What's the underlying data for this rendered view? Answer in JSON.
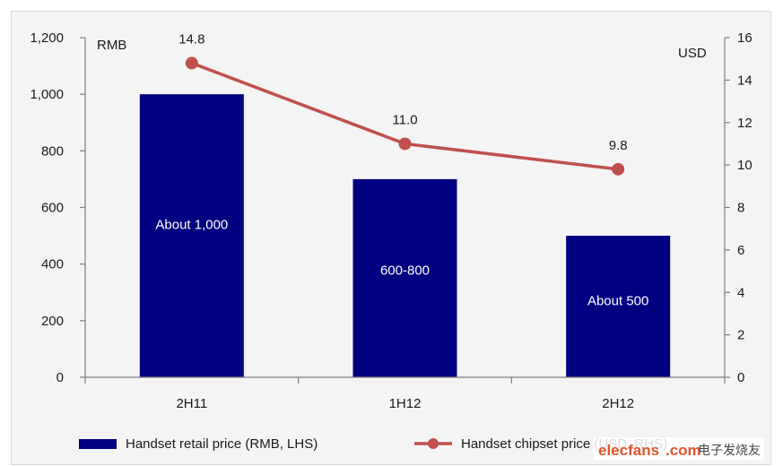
{
  "chart_data": {
    "type": "bar",
    "categories": [
      "2H11",
      "1H12",
      "2H12"
    ],
    "series": [
      {
        "name": "Handset retail price (RMB, LHS)",
        "kind": "bar",
        "axis": "left",
        "values": [
          1000,
          700,
          500
        ],
        "bar_labels": [
          "About 1,000",
          "600-800",
          "About 500"
        ],
        "color": "#000080"
      },
      {
        "name": "Handset chipset price (USD, RHS)",
        "kind": "line",
        "axis": "right",
        "values": [
          14.8,
          11.0,
          9.8
        ],
        "data_labels": [
          "14.8",
          "11.0",
          "9.8"
        ],
        "color": "#c0504d"
      }
    ],
    "left_axis": {
      "unit_label": "RMB",
      "ylim": [
        0,
        1200
      ],
      "ticks": [
        0,
        200,
        400,
        600,
        800,
        1000,
        1200
      ],
      "tick_labels": [
        "0",
        "200",
        "400",
        "600",
        "800",
        "1,000",
        "1,200"
      ]
    },
    "right_axis": {
      "unit_label": "USD",
      "ylim": [
        0,
        16
      ],
      "ticks": [
        0,
        2,
        4,
        6,
        8,
        10,
        12,
        14,
        16
      ],
      "tick_labels": [
        "0",
        "2",
        "4",
        "6",
        "8",
        "10",
        "12",
        "14",
        "16"
      ]
    },
    "grid": false,
    "legend_position": "bottom"
  },
  "watermark": {
    "brand": "elecfans",
    "domain": ".com",
    "cn": "电子发烧友"
  }
}
